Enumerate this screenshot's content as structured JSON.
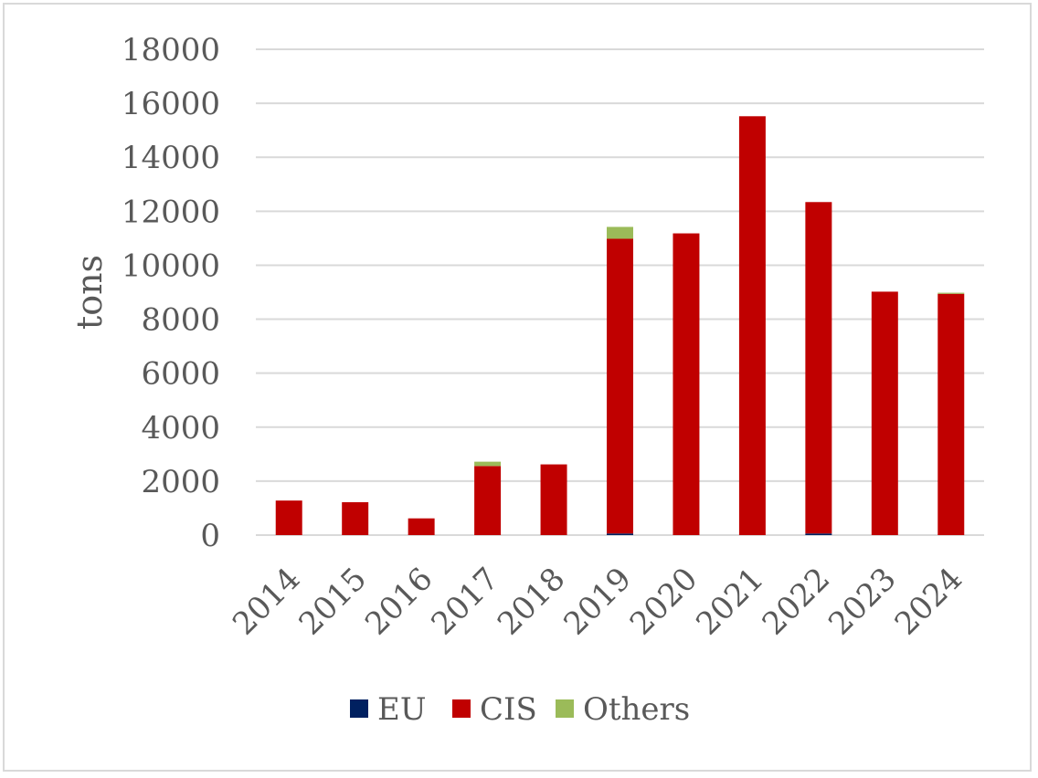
{
  "chart_data": {
    "type": "bar",
    "stacked": true,
    "categories": [
      "2014",
      "2015",
      "2016",
      "2017",
      "2018",
      "2019",
      "2020",
      "2021",
      "2022",
      "2023",
      "2024"
    ],
    "series": [
      {
        "name": "EU",
        "color": "#002060",
        "values": [
          0,
          0,
          0,
          0,
          0,
          60,
          0,
          0,
          60,
          0,
          0
        ]
      },
      {
        "name": "CIS",
        "color": "#c00000",
        "values": [
          1280,
          1220,
          620,
          2560,
          2620,
          10920,
          11180,
          15520,
          12280,
          9020,
          8940
        ]
      },
      {
        "name": "Others",
        "color": "#9bbb59",
        "values": [
          0,
          0,
          0,
          160,
          0,
          440,
          0,
          0,
          0,
          0,
          40
        ]
      }
    ],
    "title": "",
    "xlabel": "",
    "ylabel": "tons",
    "ylim": [
      0,
      18000
    ],
    "yticks": [
      0,
      2000,
      4000,
      6000,
      8000,
      10000,
      12000,
      14000,
      16000,
      18000
    ],
    "grid": true,
    "legend_position": "bottom"
  }
}
